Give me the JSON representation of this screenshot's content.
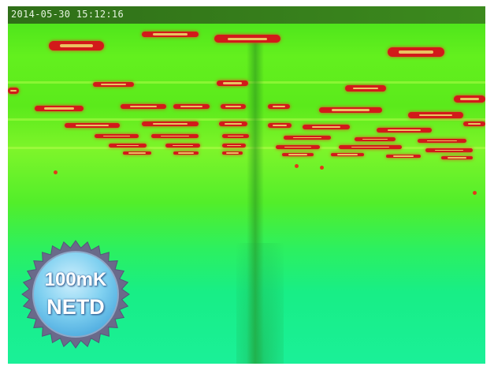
{
  "image": {
    "timestamp": "2014-05-30 15:12:16",
    "badge": {
      "line1": "100mK",
      "line2": "NETD"
    },
    "palette": {
      "hot": "#d21a1a",
      "warm": "#f0e070",
      "background_top": "#45e01a",
      "background_bottom": "#1af098",
      "badge_fill": "#7fd0f0",
      "badge_edge": "#6a6a8a"
    }
  }
}
